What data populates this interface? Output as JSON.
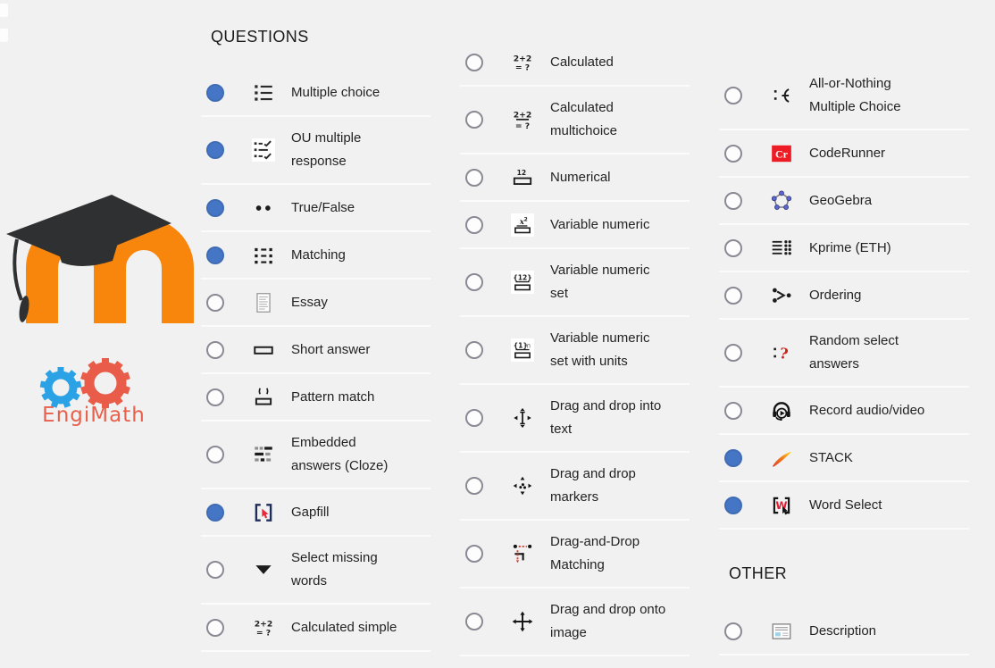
{
  "branding": {
    "engimath_label": "EngiMath"
  },
  "colors": {
    "page_background": "#f1f1f1",
    "selected_radio_blue": "#4576c5",
    "radio_border_gray": "#8a8a95",
    "moodle_orange": "#f8860d",
    "moodle_cap_black": "#2f3031",
    "engimath_blue_gear": "#2aa2e5",
    "engimath_red_gear": "#e85c49",
    "engimath_text_red": "#e8604c",
    "coderunner_red": "#ed1b23",
    "gapfill_navy": "#1f2d5a",
    "cursor_red": "#e8273b",
    "stack_gradient": [
      "#e03c31",
      "#f07c18",
      "#ffd91f"
    ],
    "row_separator": "#fbfbfb"
  },
  "columns": [
    {
      "sections": [
        {
          "header": "QUESTIONS",
          "items": [
            {
              "label": "Multiple choice",
              "icon": "multiple-choice",
              "selected": true
            },
            {
              "label": "OU multiple response",
              "icon": "ou-multiple-response",
              "selected": true
            },
            {
              "label": "True/False",
              "icon": "true-false",
              "selected": true
            },
            {
              "label": "Matching",
              "icon": "matching",
              "selected": true
            },
            {
              "label": "Essay",
              "icon": "essay",
              "selected": false
            },
            {
              "label": "Short answer",
              "icon": "short-answer",
              "selected": false
            },
            {
              "label": "Pattern match",
              "icon": "pattern-match",
              "selected": false
            },
            {
              "label": "Embedded answers (Cloze)",
              "icon": "embedded-answers",
              "selected": false
            },
            {
              "label": "Gapfill",
              "icon": "gapfill",
              "selected": true
            },
            {
              "label": "Select missing words",
              "icon": "select-missing-words",
              "selected": false
            },
            {
              "label": "Calculated simple",
              "icon": "calculated-simple",
              "selected": false
            }
          ]
        }
      ]
    },
    {
      "sections": [
        {
          "header": null,
          "items": [
            {
              "label": "Calculated",
              "icon": "calculated",
              "selected": false
            },
            {
              "label": "Calculated multichoice",
              "icon": "calculated-multichoice",
              "selected": false
            },
            {
              "label": "Numerical",
              "icon": "numerical",
              "selected": false
            },
            {
              "label": "Variable numeric",
              "icon": "variable-numeric",
              "selected": false
            },
            {
              "label": "Variable numeric set",
              "icon": "variable-numeric-set",
              "selected": false
            },
            {
              "label": "Variable numeric set with units",
              "icon": "variable-numeric-set-units",
              "selected": false
            },
            {
              "label": "Drag and drop into text",
              "icon": "drag-drop-text",
              "selected": false
            },
            {
              "label": "Drag and drop markers",
              "icon": "drag-drop-markers",
              "selected": false
            },
            {
              "label": "Drag-and-Drop Matching",
              "icon": "drag-drop-matching",
              "selected": false
            },
            {
              "label": "Drag and drop onto image",
              "icon": "drag-drop-image",
              "selected": false
            }
          ]
        }
      ]
    },
    {
      "sections": [
        {
          "header": null,
          "items": [
            {
              "label": "All-or-Nothing Multiple Choice",
              "icon": "all-or-nothing",
              "selected": false
            },
            {
              "label": "CodeRunner",
              "icon": "coderunner",
              "selected": false
            },
            {
              "label": "GeoGebra",
              "icon": "geogebra",
              "selected": false
            },
            {
              "label": "Kprime (ETH)",
              "icon": "kprime",
              "selected": false
            },
            {
              "label": "Ordering",
              "icon": "ordering",
              "selected": false
            },
            {
              "label": "Random select answers",
              "icon": "random-select",
              "selected": false
            },
            {
              "label": "Record audio/video",
              "icon": "record-av",
              "selected": false
            },
            {
              "label": "STACK",
              "icon": "stack",
              "selected": true
            },
            {
              "label": "Word Select",
              "icon": "word-select",
              "selected": true
            }
          ]
        },
        {
          "header": "OTHER",
          "items": [
            {
              "label": "Description",
              "icon": "description",
              "selected": false
            }
          ]
        }
      ]
    }
  ]
}
